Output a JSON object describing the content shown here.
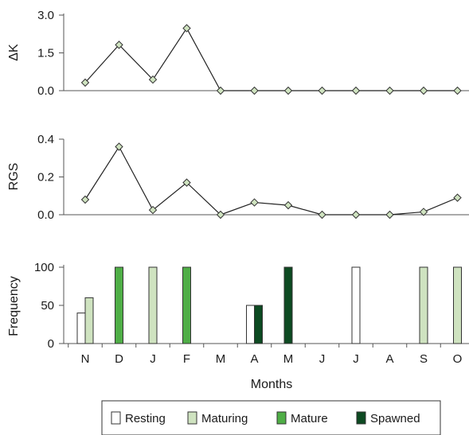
{
  "chart_data": [
    {
      "type": "line",
      "ylabel": "ΔK",
      "ylim": [
        0,
        3.0
      ],
      "yticks": [
        "0.0",
        "1.5",
        "3.0"
      ],
      "marker": "diamond",
      "marker_color": "#cfe3c0",
      "values": [
        0.32,
        1.82,
        0.44,
        2.48,
        0.0,
        0.0,
        0.0,
        0.0,
        0.0,
        0.0,
        0.0,
        0.0
      ]
    },
    {
      "type": "line",
      "ylabel": "RGS",
      "ylim": [
        0,
        0.4
      ],
      "yticks": [
        "0.0",
        "0.2",
        "0.4"
      ],
      "marker": "diamond",
      "marker_color": "#cfe3c0",
      "values": [
        0.08,
        0.36,
        0.025,
        0.17,
        0.0,
        0.065,
        0.05,
        0.0,
        0.0,
        0.0,
        0.015,
        0.09
      ]
    },
    {
      "type": "bar",
      "ylabel": "Frequency",
      "xlabel": "Months",
      "ylim": [
        0,
        100
      ],
      "yticks": [
        "0",
        "50",
        "100"
      ],
      "categories": [
        "N",
        "D",
        "J",
        "F",
        "M",
        "A",
        "M",
        "J",
        "J",
        "A",
        "S",
        "O"
      ],
      "series": [
        {
          "name": "Resting",
          "color": "#ffffff",
          "values": [
            40,
            0,
            0,
            0,
            0,
            50,
            0,
            0,
            100,
            0,
            0,
            0
          ]
        },
        {
          "name": "Maturing",
          "color": "#cfe3c0",
          "values": [
            60,
            0,
            100,
            0,
            0,
            0,
            0,
            0,
            0,
            0,
            100,
            100
          ]
        },
        {
          "name": "Mature",
          "color": "#4fae46",
          "values": [
            0,
            100,
            0,
            100,
            0,
            0,
            0,
            0,
            0,
            0,
            0,
            0
          ]
        },
        {
          "name": "Spawned",
          "color": "#0d4a22",
          "values": [
            0,
            0,
            0,
            0,
            0,
            50,
            100,
            0,
            0,
            0,
            0,
            0
          ]
        }
      ],
      "legend": "bottom"
    }
  ]
}
